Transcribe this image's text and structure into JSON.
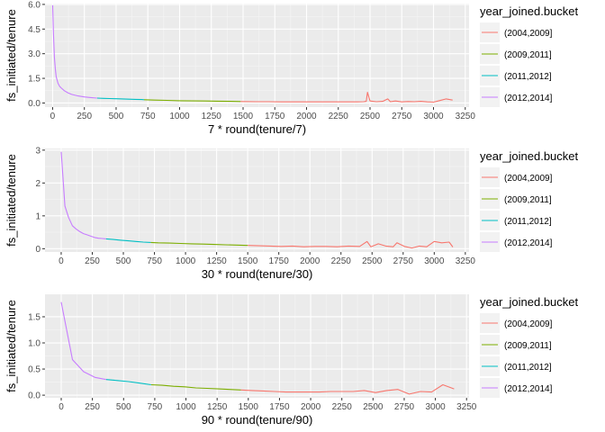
{
  "chart_data": [
    {
      "type": "line",
      "xlabel": "7 * round(tenure/7)",
      "ylabel": "fs_initiated/tenure",
      "xlim": [
        -60,
        3280
      ],
      "ylim": [
        -0.25,
        6.05
      ],
      "xticks": [
        0,
        250,
        500,
        750,
        1000,
        1250,
        1500,
        1750,
        2000,
        2250,
        2500,
        2750,
        3000,
        3250
      ],
      "yticks": [
        0,
        1.5,
        3,
        4.5,
        6
      ],
      "ytick_labels": [
        "0.0",
        "1.5",
        "3.0",
        "4.5",
        "6.0"
      ],
      "legend": {
        "title": "year_joined.bucket",
        "position": "right"
      },
      "series": [
        {
          "name": "(2004,2009]",
          "color": "#F8766D",
          "x": [
            1480,
            1600,
            1700,
            1800,
            1900,
            2000,
            2100,
            2200,
            2300,
            2400,
            2450,
            2470,
            2480,
            2500,
            2550,
            2600,
            2640,
            2660,
            2700,
            2750,
            2800,
            2850,
            2900,
            2950,
            3000,
            3050,
            3100,
            3150
          ],
          "y": [
            0.09,
            0.08,
            0.08,
            0.07,
            0.07,
            0.07,
            0.07,
            0.07,
            0.07,
            0.07,
            0.08,
            0.1,
            0.65,
            0.12,
            0.08,
            0.1,
            0.25,
            0.08,
            0.12,
            0.07,
            0.09,
            0.08,
            0.1,
            0.07,
            0.05,
            0.15,
            0.25,
            0.18
          ]
        },
        {
          "name": "(2009,2011]",
          "color": "#7CAE00",
          "x": [
            720,
            800,
            900,
            1000,
            1100,
            1200,
            1300,
            1400,
            1480
          ],
          "y": [
            0.2,
            0.18,
            0.16,
            0.14,
            0.13,
            0.12,
            0.11,
            0.1,
            0.09
          ]
        },
        {
          "name": "(2011,2012]",
          "color": "#00BFC4",
          "x": [
            350,
            400,
            450,
            500,
            550,
            600,
            650,
            700,
            720
          ],
          "y": [
            0.3,
            0.28,
            0.27,
            0.26,
            0.25,
            0.23,
            0.22,
            0.21,
            0.2
          ]
        },
        {
          "name": "(2012,2014]",
          "color": "#C77CFF",
          "x": [
            0,
            7,
            14,
            21,
            28,
            42,
            56,
            70,
            91,
            120,
            150,
            200,
            250,
            300,
            350
          ],
          "y": [
            5.95,
            4.2,
            2.8,
            2.1,
            1.6,
            1.2,
            1.0,
            0.9,
            0.75,
            0.62,
            0.52,
            0.43,
            0.37,
            0.33,
            0.3
          ]
        }
      ]
    },
    {
      "type": "line",
      "xlabel": "30 * round(tenure/30)",
      "ylabel": "fs_initiated/tenure",
      "xlim": [
        -130,
        3280
      ],
      "ylim": [
        -0.1,
        3.05
      ],
      "xticks": [
        0,
        250,
        500,
        750,
        1000,
        1250,
        1500,
        1750,
        2000,
        2250,
        2500,
        2750,
        3000,
        3250
      ],
      "yticks": [
        0,
        1,
        2,
        3
      ],
      "ytick_labels": [
        "0",
        "1",
        "2",
        "3"
      ],
      "legend": {
        "title": "year_joined.bucket",
        "position": "right"
      },
      "series": [
        {
          "name": "(2004,2009]",
          "color": "#F8766D",
          "x": [
            1500,
            1590,
            1680,
            1770,
            1860,
            1950,
            2040,
            2130,
            2220,
            2310,
            2400,
            2460,
            2490,
            2550,
            2610,
            2670,
            2700,
            2760,
            2820,
            2880,
            2940,
            3000,
            3060,
            3120,
            3150
          ],
          "y": [
            0.1,
            0.09,
            0.08,
            0.07,
            0.08,
            0.06,
            0.07,
            0.07,
            0.06,
            0.08,
            0.07,
            0.22,
            0.06,
            0.15,
            0.08,
            0.06,
            0.18,
            0.07,
            0.02,
            0.08,
            0.06,
            0.22,
            0.18,
            0.2,
            0.05
          ]
        },
        {
          "name": "(2009,2011]",
          "color": "#7CAE00",
          "x": [
            720,
            780,
            870,
            960,
            1050,
            1140,
            1230,
            1320,
            1410,
            1500
          ],
          "y": [
            0.19,
            0.18,
            0.17,
            0.16,
            0.15,
            0.14,
            0.13,
            0.12,
            0.11,
            0.1
          ]
        },
        {
          "name": "(2011,2012]",
          "color": "#00BFC4",
          "x": [
            360,
            420,
            480,
            540,
            600,
            660,
            720
          ],
          "y": [
            0.3,
            0.28,
            0.26,
            0.24,
            0.22,
            0.2,
            0.19
          ]
        },
        {
          "name": "(2012,2014]",
          "color": "#C77CFF",
          "x": [
            0,
            30,
            60,
            90,
            120,
            150,
            180,
            210,
            240,
            270,
            300,
            330,
            360
          ],
          "y": [
            2.95,
            1.3,
            0.95,
            0.7,
            0.6,
            0.52,
            0.46,
            0.42,
            0.38,
            0.34,
            0.32,
            0.31,
            0.3
          ]
        }
      ]
    },
    {
      "type": "line",
      "xlabel": "90 * round(tenure/90)",
      "ylabel": "fs_initiated/tenure",
      "xlim": [
        -130,
        3270
      ],
      "ylim": [
        -0.05,
        1.93
      ],
      "xticks": [
        0,
        250,
        500,
        750,
        1000,
        1250,
        1500,
        1750,
        2000,
        2250,
        2500,
        2750,
        3000,
        3250
      ],
      "yticks": [
        0,
        0.5,
        1,
        1.5
      ],
      "ytick_labels": [
        "0.0",
        "0.5",
        "1.0",
        "1.5"
      ],
      "legend": {
        "title": "year_joined.bucket",
        "position": "right"
      },
      "series": [
        {
          "name": "(2004,2009]",
          "color": "#F8766D",
          "x": [
            1440,
            1530,
            1620,
            1710,
            1800,
            1890,
            1980,
            2070,
            2160,
            2250,
            2340,
            2430,
            2520,
            2610,
            2700,
            2790,
            2880,
            2970,
            3060,
            3150
          ],
          "y": [
            0.1,
            0.09,
            0.08,
            0.07,
            0.06,
            0.06,
            0.06,
            0.06,
            0.07,
            0.07,
            0.07,
            0.09,
            0.05,
            0.09,
            0.11,
            0.02,
            0.07,
            0.06,
            0.2,
            0.12
          ]
        },
        {
          "name": "(2009,2011]",
          "color": "#7CAE00",
          "x": [
            720,
            810,
            900,
            990,
            1080,
            1170,
            1260,
            1350,
            1440
          ],
          "y": [
            0.2,
            0.19,
            0.17,
            0.16,
            0.14,
            0.13,
            0.12,
            0.11,
            0.1
          ]
        },
        {
          "name": "(2011,2012]",
          "color": "#00BFC4",
          "x": [
            360,
            450,
            540,
            630,
            720
          ],
          "y": [
            0.3,
            0.28,
            0.26,
            0.23,
            0.2
          ]
        },
        {
          "name": "(2012,2014]",
          "color": "#C77CFF",
          "x": [
            0,
            90,
            180,
            270,
            360
          ],
          "y": [
            1.78,
            0.68,
            0.45,
            0.34,
            0.3
          ]
        }
      ]
    }
  ]
}
